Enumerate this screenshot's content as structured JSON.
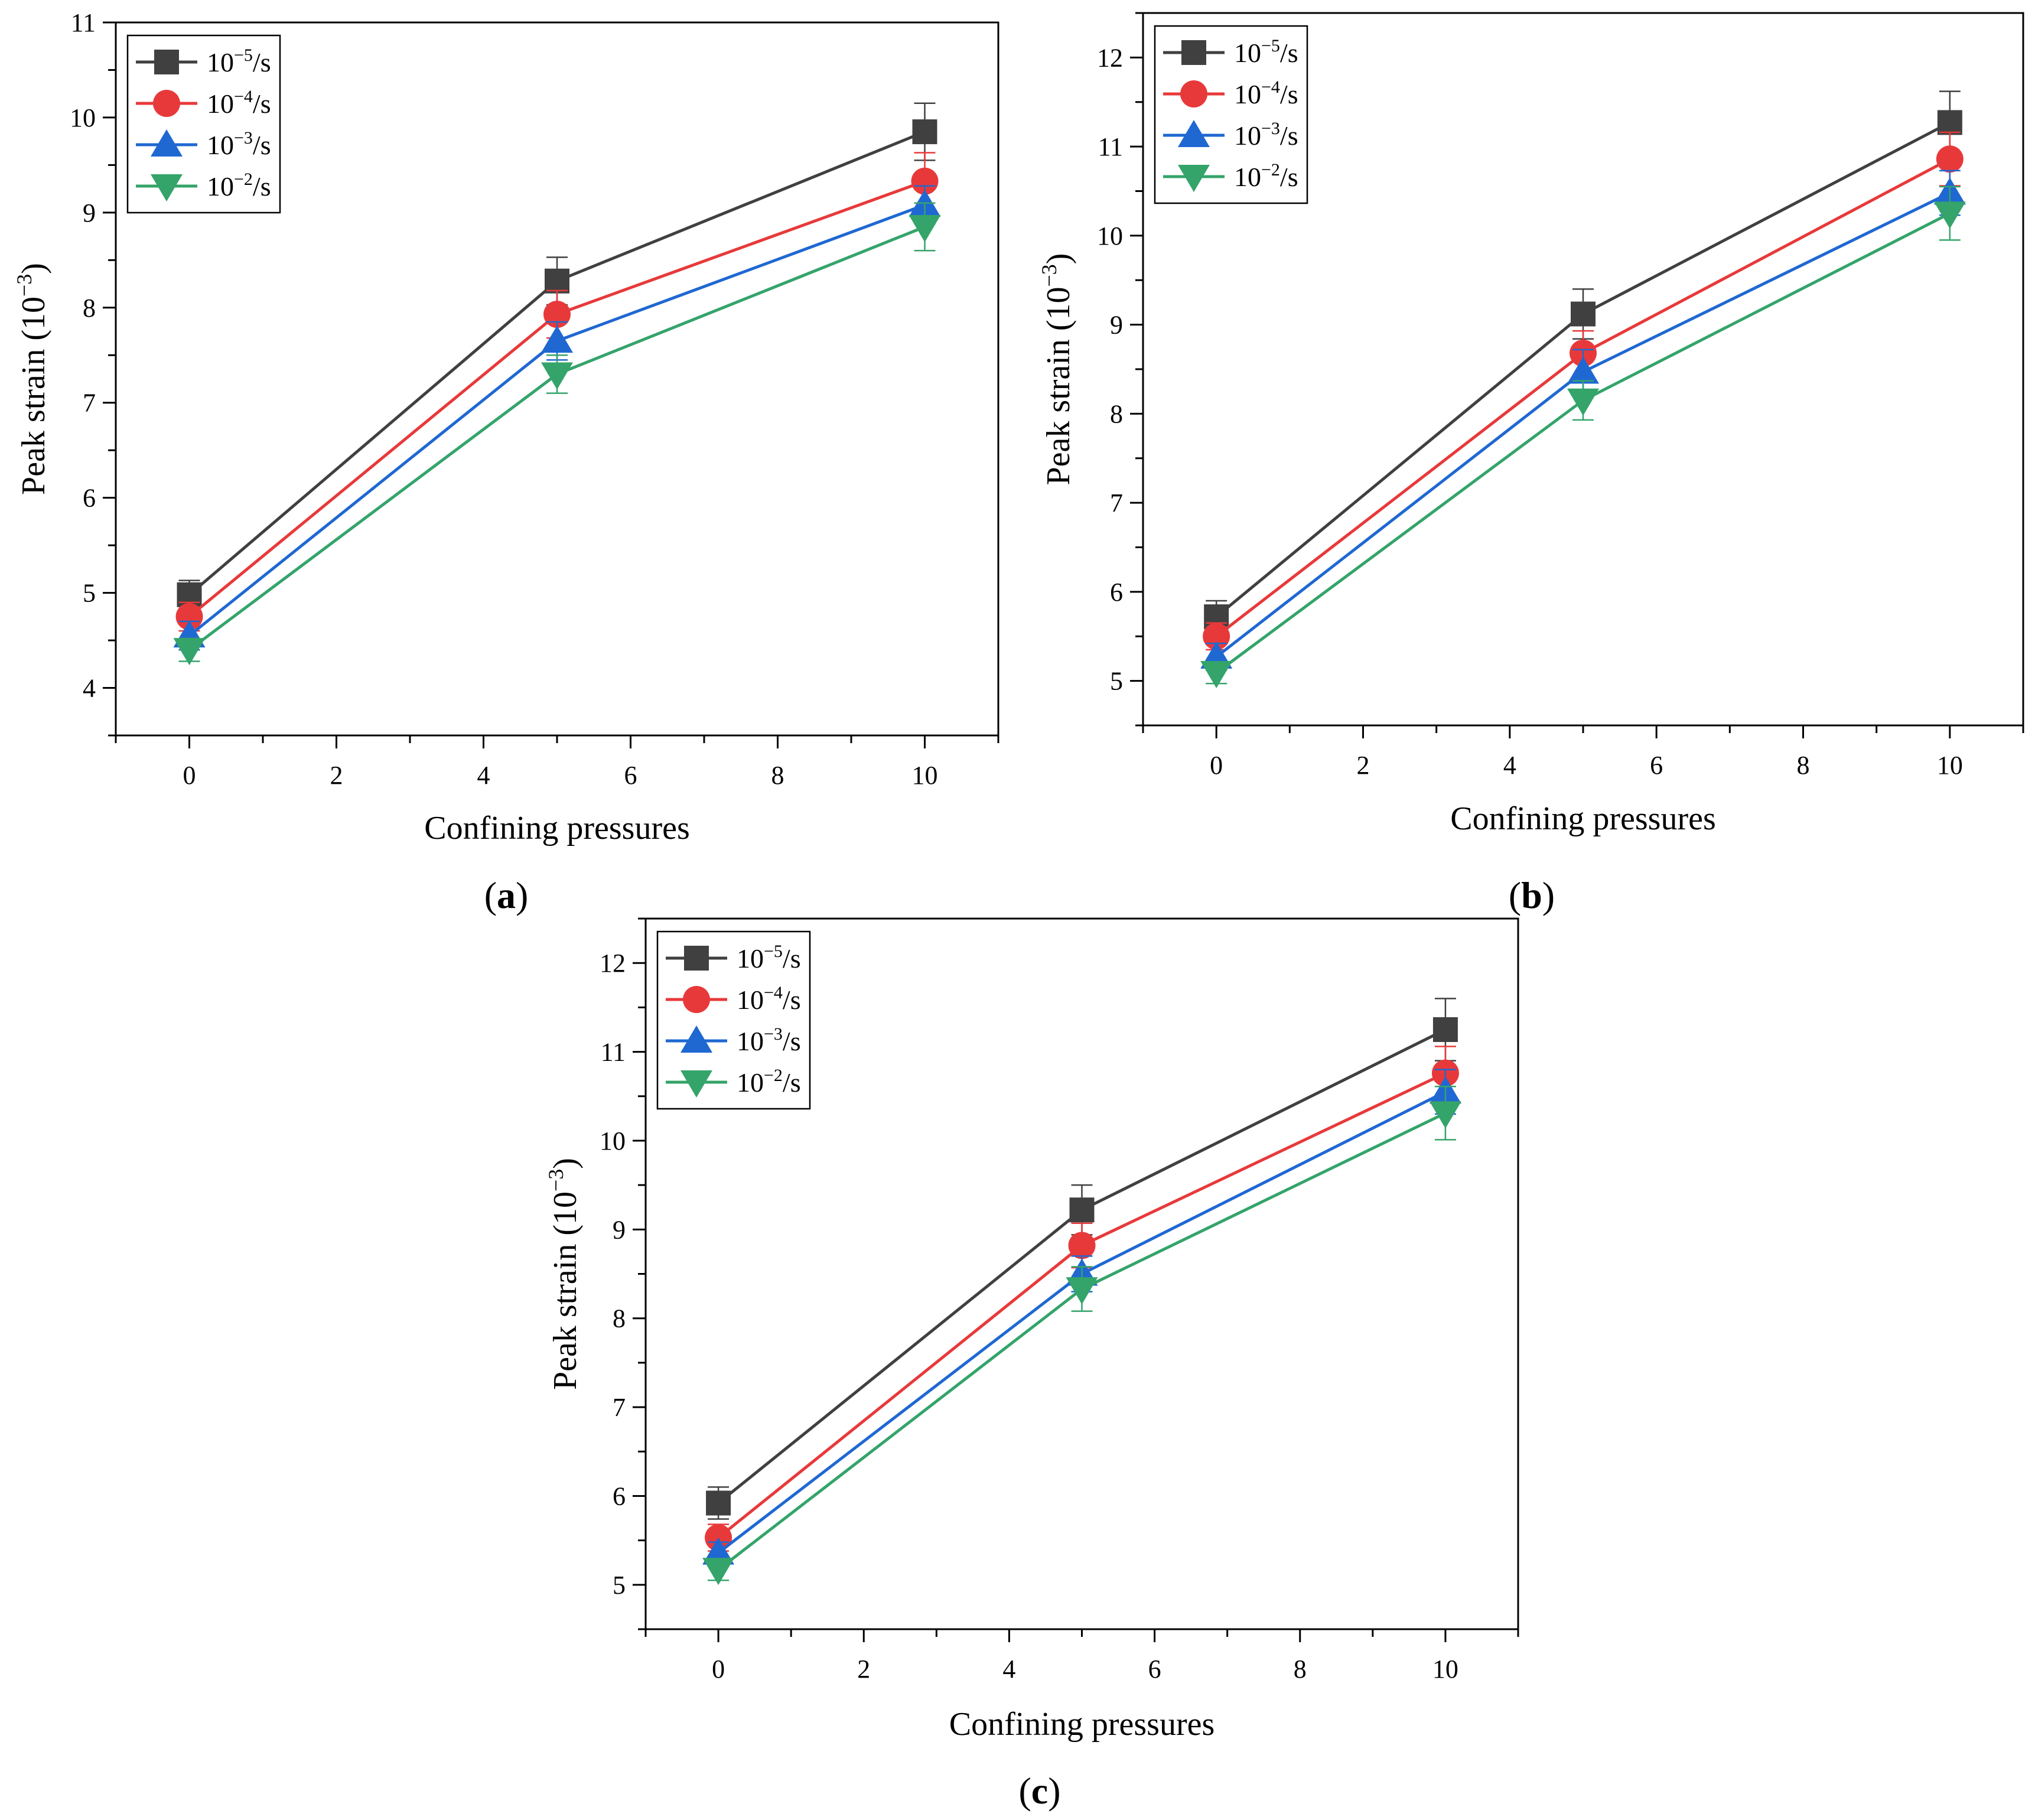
{
  "chart_data": [
    {
      "type": "line",
      "panel": "a",
      "xlabel": "Confining pressures",
      "ylabel": "Peak strain (10⁻³)",
      "xlim": [
        -1,
        11
      ],
      "ylim": [
        3.5,
        11
      ],
      "xticks": [
        0,
        2,
        4,
        6,
        8,
        10
      ],
      "yticks": [
        4,
        5,
        6,
        7,
        8,
        9,
        10,
        11
      ],
      "x": [
        0,
        5,
        10
      ],
      "legend_position": "top-left",
      "series": [
        {
          "name": "10⁻⁵/s",
          "base": "10",
          "exp": "−5",
          "unit": "/s",
          "color": "#404040",
          "marker": "square",
          "values": [
            4.98,
            8.28,
            9.85
          ],
          "errors": [
            0.15,
            0.25,
            0.3
          ]
        },
        {
          "name": "10⁻⁴/s",
          "base": "10",
          "exp": "−4",
          "unit": "/s",
          "color": "#e8393a",
          "marker": "circle",
          "values": [
            4.75,
            7.93,
            9.33
          ],
          "errors": [
            0.15,
            0.25,
            0.3
          ]
        },
        {
          "name": "10⁻³/s",
          "base": "10",
          "exp": "−3",
          "unit": "/s",
          "color": "#1f68d2",
          "marker": "triangle-up",
          "values": [
            4.55,
            7.65,
            9.08
          ],
          "errors": [
            0.15,
            0.2,
            0.2
          ]
        },
        {
          "name": "10⁻²/s",
          "base": "10",
          "exp": "−2",
          "unit": "/s",
          "color": "#34a46a",
          "marker": "triangle-down",
          "values": [
            4.4,
            7.3,
            8.85
          ],
          "errors": [
            0.12,
            0.2,
            0.25
          ]
        }
      ]
    },
    {
      "type": "line",
      "panel": "b",
      "xlabel": "Confining pressures",
      "ylabel": "Peak strain (10⁻³)",
      "xlim": [
        -1,
        11
      ],
      "ylim": [
        4.5,
        12.5
      ],
      "xticks": [
        0,
        2,
        4,
        6,
        8,
        10
      ],
      "yticks": [
        5,
        6,
        7,
        8,
        9,
        10,
        11,
        12
      ],
      "x": [
        0,
        5,
        10
      ],
      "legend_position": "top-left",
      "series": [
        {
          "name": "10⁻⁵/s",
          "base": "10",
          "exp": "−5",
          "unit": "/s",
          "color": "#404040",
          "marker": "square",
          "values": [
            5.72,
            9.12,
            11.27
          ],
          "errors": [
            0.18,
            0.28,
            0.35
          ]
        },
        {
          "name": "10⁻⁴/s",
          "base": "10",
          "exp": "−4",
          "unit": "/s",
          "color": "#e8393a",
          "marker": "circle",
          "values": [
            5.5,
            8.68,
            10.86
          ],
          "errors": [
            0.15,
            0.25,
            0.3
          ]
        },
        {
          "name": "10⁻³/s",
          "base": "10",
          "exp": "−3",
          "unit": "/s",
          "color": "#1f68d2",
          "marker": "triangle-up",
          "values": [
            5.27,
            8.47,
            10.48
          ],
          "errors": [
            0.15,
            0.25,
            0.25
          ]
        },
        {
          "name": "10⁻²/s",
          "base": "10",
          "exp": "−2",
          "unit": "/s",
          "color": "#34a46a",
          "marker": "triangle-down",
          "values": [
            5.09,
            8.15,
            10.25
          ],
          "errors": [
            0.12,
            0.22,
            0.3
          ]
        }
      ]
    },
    {
      "type": "line",
      "panel": "c",
      "xlabel": "Confining pressures",
      "ylabel": "Peak strain (10⁻³)",
      "xlim": [
        -1,
        11
      ],
      "ylim": [
        4.5,
        12.5
      ],
      "xticks": [
        0,
        2,
        4,
        6,
        8,
        10
      ],
      "yticks": [
        5,
        6,
        7,
        8,
        9,
        10,
        11,
        12
      ],
      "x": [
        0,
        5,
        10
      ],
      "legend_position": "top-left",
      "series": [
        {
          "name": "10⁻⁵/s",
          "base": "10",
          "exp": "−5",
          "unit": "/s",
          "color": "#404040",
          "marker": "square",
          "values": [
            5.92,
            9.22,
            11.25
          ],
          "errors": [
            0.18,
            0.28,
            0.35
          ]
        },
        {
          "name": "10⁻⁴/s",
          "base": "10",
          "exp": "−4",
          "unit": "/s",
          "color": "#e8393a",
          "marker": "circle",
          "values": [
            5.53,
            8.82,
            10.76
          ],
          "errors": [
            0.15,
            0.25,
            0.3
          ]
        },
        {
          "name": "10⁻³/s",
          "base": "10",
          "exp": "−3",
          "unit": "/s",
          "color": "#1f68d2",
          "marker": "triangle-up",
          "values": [
            5.36,
            8.5,
            10.55
          ],
          "errors": [
            0.12,
            0.2,
            0.25
          ]
        },
        {
          "name": "10⁻²/s",
          "base": "10",
          "exp": "−2",
          "unit": "/s",
          "color": "#34a46a",
          "marker": "triangle-down",
          "values": [
            5.17,
            8.33,
            10.31
          ],
          "errors": [
            0.12,
            0.25,
            0.3
          ]
        }
      ]
    }
  ],
  "panel_labels": [
    {
      "open": "(",
      "letter": "a",
      "close": ")"
    },
    {
      "open": "(",
      "letter": "b",
      "close": ")"
    },
    {
      "open": "(",
      "letter": "c",
      "close": ")"
    }
  ],
  "axis_text": {
    "ylabel_main": "Peak strain (10",
    "ylabel_exp": "−3",
    "ylabel_close": ")"
  }
}
